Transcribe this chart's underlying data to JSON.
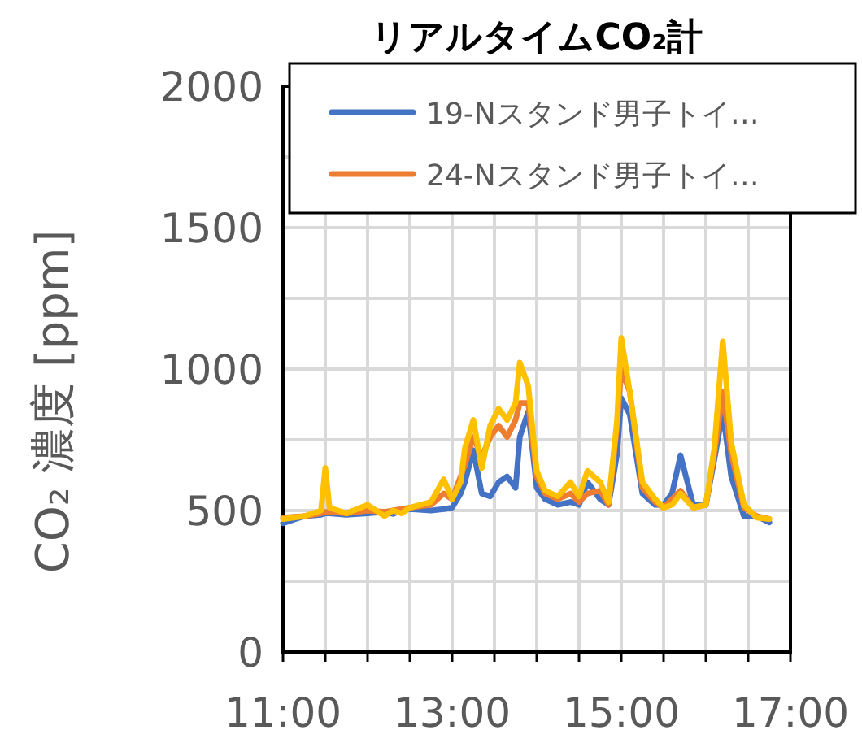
{
  "chart_data": {
    "type": "line",
    "title": "リアルタイムCO₂計",
    "ylabel": "CO₂ 濃度 [ppm]",
    "x": [
      11.0,
      11.25,
      11.45,
      11.5,
      11.55,
      11.75,
      12.0,
      12.2,
      12.3,
      12.4,
      12.5,
      12.75,
      12.9,
      13.0,
      13.1,
      13.15,
      13.25,
      13.35,
      13.45,
      13.55,
      13.65,
      13.75,
      13.8,
      13.9,
      14.0,
      14.1,
      14.25,
      14.4,
      14.5,
      14.6,
      14.75,
      14.85,
      14.95,
      15.0,
      15.1,
      15.25,
      15.4,
      15.5,
      15.6,
      15.7,
      15.85,
      16.0,
      16.1,
      16.2,
      16.3,
      16.45,
      16.6,
      16.75
    ],
    "series": [
      {
        "name": "19-Nスタンド男子トイ…",
        "color": "#4472c4",
        "values": [
          455,
          480,
          485,
          490,
          490,
          485,
          490,
          495,
          488,
          500,
          505,
          500,
          505,
          510,
          560,
          600,
          713,
          560,
          550,
          600,
          620,
          580,
          760,
          850,
          580,
          540,
          520,
          530,
          520,
          600,
          540,
          520,
          700,
          897,
          840,
          560,
          520,
          520,
          560,
          695,
          520,
          520,
          680,
          850,
          620,
          480,
          480,
          458
        ]
      },
      {
        "name": "24-Nスタンド男子トイ…",
        "color": "#ed7d31",
        "values": [
          475,
          480,
          490,
          495,
          495,
          490,
          500,
          495,
          500,
          505,
          510,
          520,
          560,
          540,
          620,
          660,
          760,
          690,
          760,
          800,
          760,
          820,
          880,
          880,
          620,
          560,
          540,
          560,
          530,
          560,
          570,
          520,
          800,
          1000,
          920,
          580,
          530,
          510,
          540,
          570,
          510,
          520,
          700,
          920,
          700,
          510,
          480,
          470
        ]
      },
      {
        "color": "#ffc000",
        "values": [
          470,
          480,
          500,
          650,
          510,
          490,
          520,
          480,
          500,
          490,
          510,
          530,
          610,
          540,
          600,
          720,
          820,
          650,
          800,
          860,
          820,
          880,
          1023,
          940,
          640,
          570,
          550,
          600,
          550,
          640,
          600,
          530,
          820,
          1110,
          920,
          600,
          540,
          510,
          520,
          560,
          510,
          520,
          720,
          1098,
          740,
          520,
          475,
          470
        ]
      }
    ],
    "xlim": [
      11,
      17
    ],
    "xticks": [
      {
        "value": 11,
        "label": "11:00"
      },
      {
        "value": 11.5,
        "label": null
      },
      {
        "value": 12,
        "label": null
      },
      {
        "value": 12.5,
        "label": null
      },
      {
        "value": 13,
        "label": "13:00"
      },
      {
        "value": 13.5,
        "label": null
      },
      {
        "value": 14,
        "label": null
      },
      {
        "value": 14.5,
        "label": null
      },
      {
        "value": 15,
        "label": "15:00"
      },
      {
        "value": 15.5,
        "label": null
      },
      {
        "value": 16,
        "label": null
      },
      {
        "value": 16.5,
        "label": null
      },
      {
        "value": 17,
        "label": "17:00"
      }
    ],
    "ylim": [
      0,
      2000
    ],
    "yticks": [
      0,
      {
        "value": 250,
        "label": null
      },
      500,
      {
        "value": 750,
        "label": null
      },
      1000,
      {
        "value": 1250,
        "label": null
      },
      1500,
      {
        "value": 1750,
        "label": null
      },
      2000
    ],
    "grid": true,
    "legend": "top",
    "line_style": "solid"
  }
}
